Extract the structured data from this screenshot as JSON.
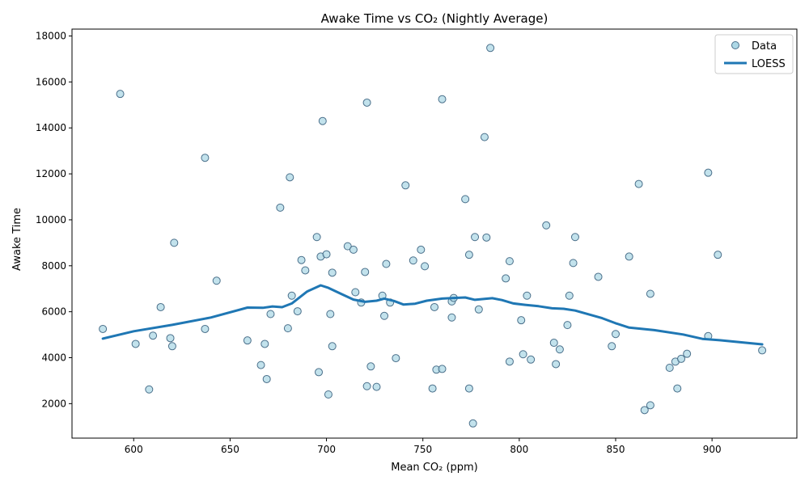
{
  "chart_data": {
    "type": "scatter",
    "title": "Awake Time vs CO₂ (Nightly Average)",
    "xlabel": "Mean CO₂ (ppm)",
    "ylabel": "Awake Time",
    "xlim": [
      568,
      944
    ],
    "ylim": [
      500,
      18300
    ],
    "xticks": [
      600,
      650,
      700,
      750,
      800,
      850,
      900
    ],
    "yticks": [
      2000,
      4000,
      6000,
      8000,
      10000,
      12000,
      14000,
      16000,
      18000
    ],
    "grid": false,
    "legend_position": "top-right",
    "series": [
      {
        "name": "Data",
        "kind": "scatter",
        "color": "#add8e6",
        "edge_color": "#4a6f8a",
        "points": [
          [
            584,
            5250
          ],
          [
            593,
            15480
          ],
          [
            601,
            4600
          ],
          [
            608,
            2620
          ],
          [
            610,
            4960
          ],
          [
            614,
            6200
          ],
          [
            619,
            4850
          ],
          [
            620,
            4500
          ],
          [
            621,
            9000
          ],
          [
            637,
            12700
          ],
          [
            637,
            5250
          ],
          [
            643,
            7350
          ],
          [
            659,
            4750
          ],
          [
            666,
            3680
          ],
          [
            668,
            4600
          ],
          [
            669,
            3070
          ],
          [
            671,
            5900
          ],
          [
            676,
            10530
          ],
          [
            680,
            5280
          ],
          [
            681,
            11850
          ],
          [
            682,
            6700
          ],
          [
            685,
            6020
          ],
          [
            687,
            8250
          ],
          [
            689,
            7800
          ],
          [
            695,
            9250
          ],
          [
            696,
            3370
          ],
          [
            697,
            8400
          ],
          [
            698,
            14300
          ],
          [
            700,
            8500
          ],
          [
            701,
            2400
          ],
          [
            702,
            5900
          ],
          [
            703,
            7700
          ],
          [
            703,
            4500
          ],
          [
            711,
            8850
          ],
          [
            714,
            8700
          ],
          [
            715,
            6850
          ],
          [
            718,
            6400
          ],
          [
            720,
            7730
          ],
          [
            721,
            2760
          ],
          [
            721,
            15100
          ],
          [
            723,
            3620
          ],
          [
            726,
            2730
          ],
          [
            729,
            6700
          ],
          [
            730,
            5820
          ],
          [
            731,
            8080
          ],
          [
            733,
            6400
          ],
          [
            736,
            3980
          ],
          [
            741,
            11500
          ],
          [
            745,
            8230
          ],
          [
            749,
            8700
          ],
          [
            751,
            7980
          ],
          [
            755,
            2660
          ],
          [
            756,
            6200
          ],
          [
            757,
            3480
          ],
          [
            760,
            3510
          ],
          [
            760,
            15250
          ],
          [
            765,
            6450
          ],
          [
            765,
            5750
          ],
          [
            766,
            6600
          ],
          [
            772,
            10900
          ],
          [
            774,
            8480
          ],
          [
            774,
            2660
          ],
          [
            776,
            1140
          ],
          [
            777,
            9250
          ],
          [
            779,
            6100
          ],
          [
            782,
            13600
          ],
          [
            783,
            9230
          ],
          [
            785,
            17480
          ],
          [
            793,
            7450
          ],
          [
            795,
            8200
          ],
          [
            795,
            3830
          ],
          [
            801,
            5630
          ],
          [
            802,
            4150
          ],
          [
            804,
            6700
          ],
          [
            806,
            3920
          ],
          [
            814,
            9760
          ],
          [
            818,
            4650
          ],
          [
            819,
            3720
          ],
          [
            821,
            4360
          ],
          [
            825,
            5420
          ],
          [
            826,
            6700
          ],
          [
            828,
            8120
          ],
          [
            829,
            9250
          ],
          [
            841,
            7520
          ],
          [
            848,
            4500
          ],
          [
            850,
            5030
          ],
          [
            857,
            8400
          ],
          [
            862,
            11560
          ],
          [
            865,
            1720
          ],
          [
            868,
            1930
          ],
          [
            868,
            6780
          ],
          [
            878,
            3560
          ],
          [
            881,
            3830
          ],
          [
            882,
            2660
          ],
          [
            884,
            3950
          ],
          [
            887,
            4170
          ],
          [
            898,
            4940
          ],
          [
            898,
            12050
          ],
          [
            903,
            8480
          ],
          [
            926,
            4320
          ]
        ]
      },
      {
        "name": "LOESS",
        "kind": "line",
        "color": "#1f77b4",
        "points": [
          [
            584,
            4830
          ],
          [
            600,
            5150
          ],
          [
            620,
            5430
          ],
          [
            640,
            5750
          ],
          [
            659,
            6180
          ],
          [
            667,
            6170
          ],
          [
            672,
            6230
          ],
          [
            677,
            6200
          ],
          [
            682,
            6360
          ],
          [
            690,
            6880
          ],
          [
            697,
            7150
          ],
          [
            701,
            7040
          ],
          [
            708,
            6760
          ],
          [
            714,
            6530
          ],
          [
            720,
            6430
          ],
          [
            726,
            6480
          ],
          [
            730,
            6570
          ],
          [
            735,
            6470
          ],
          [
            740,
            6310
          ],
          [
            746,
            6350
          ],
          [
            752,
            6480
          ],
          [
            760,
            6570
          ],
          [
            766,
            6600
          ],
          [
            772,
            6620
          ],
          [
            777,
            6520
          ],
          [
            782,
            6560
          ],
          [
            786,
            6590
          ],
          [
            791,
            6510
          ],
          [
            797,
            6360
          ],
          [
            803,
            6300
          ],
          [
            810,
            6240
          ],
          [
            817,
            6150
          ],
          [
            823,
            6130
          ],
          [
            829,
            6050
          ],
          [
            843,
            5720
          ],
          [
            850,
            5500
          ],
          [
            857,
            5310
          ],
          [
            870,
            5200
          ],
          [
            885,
            5010
          ],
          [
            895,
            4820
          ],
          [
            904,
            4760
          ],
          [
            926,
            4580
          ]
        ]
      }
    ]
  }
}
